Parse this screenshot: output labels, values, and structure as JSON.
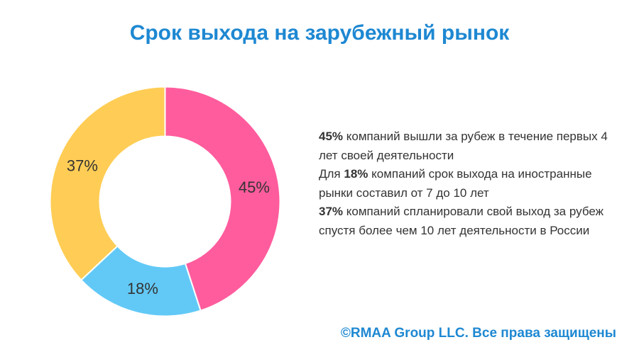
{
  "title": "Срок выхода на зарубежный рынок",
  "chart_data": {
    "type": "pie",
    "variant": "donut",
    "title": "Срок выхода на зарубежный рынок",
    "slices": [
      {
        "label": "45%",
        "value": 45,
        "color": "#ff5c9d"
      },
      {
        "label": "18%",
        "value": 18,
        "color": "#62c9f7"
      },
      {
        "label": "37%",
        "value": 37,
        "color": "#ffcd55"
      }
    ]
  },
  "description": [
    {
      "bold": "45%",
      "text": " компаний вышли за рубеж в течение первых 4 лет своей деятельности"
    },
    {
      "prefix": "Для ",
      "bold": "18%",
      "text": " компаний срок выхода на иностранные рынки составил от 7 до 10 лет"
    },
    {
      "bold": "37%",
      "text": " компаний спланировали свой выход за рубеж спустя более чем 10 лет деятельности в России"
    }
  ],
  "footer": "©RMAA Group LLC. Все права защищены"
}
